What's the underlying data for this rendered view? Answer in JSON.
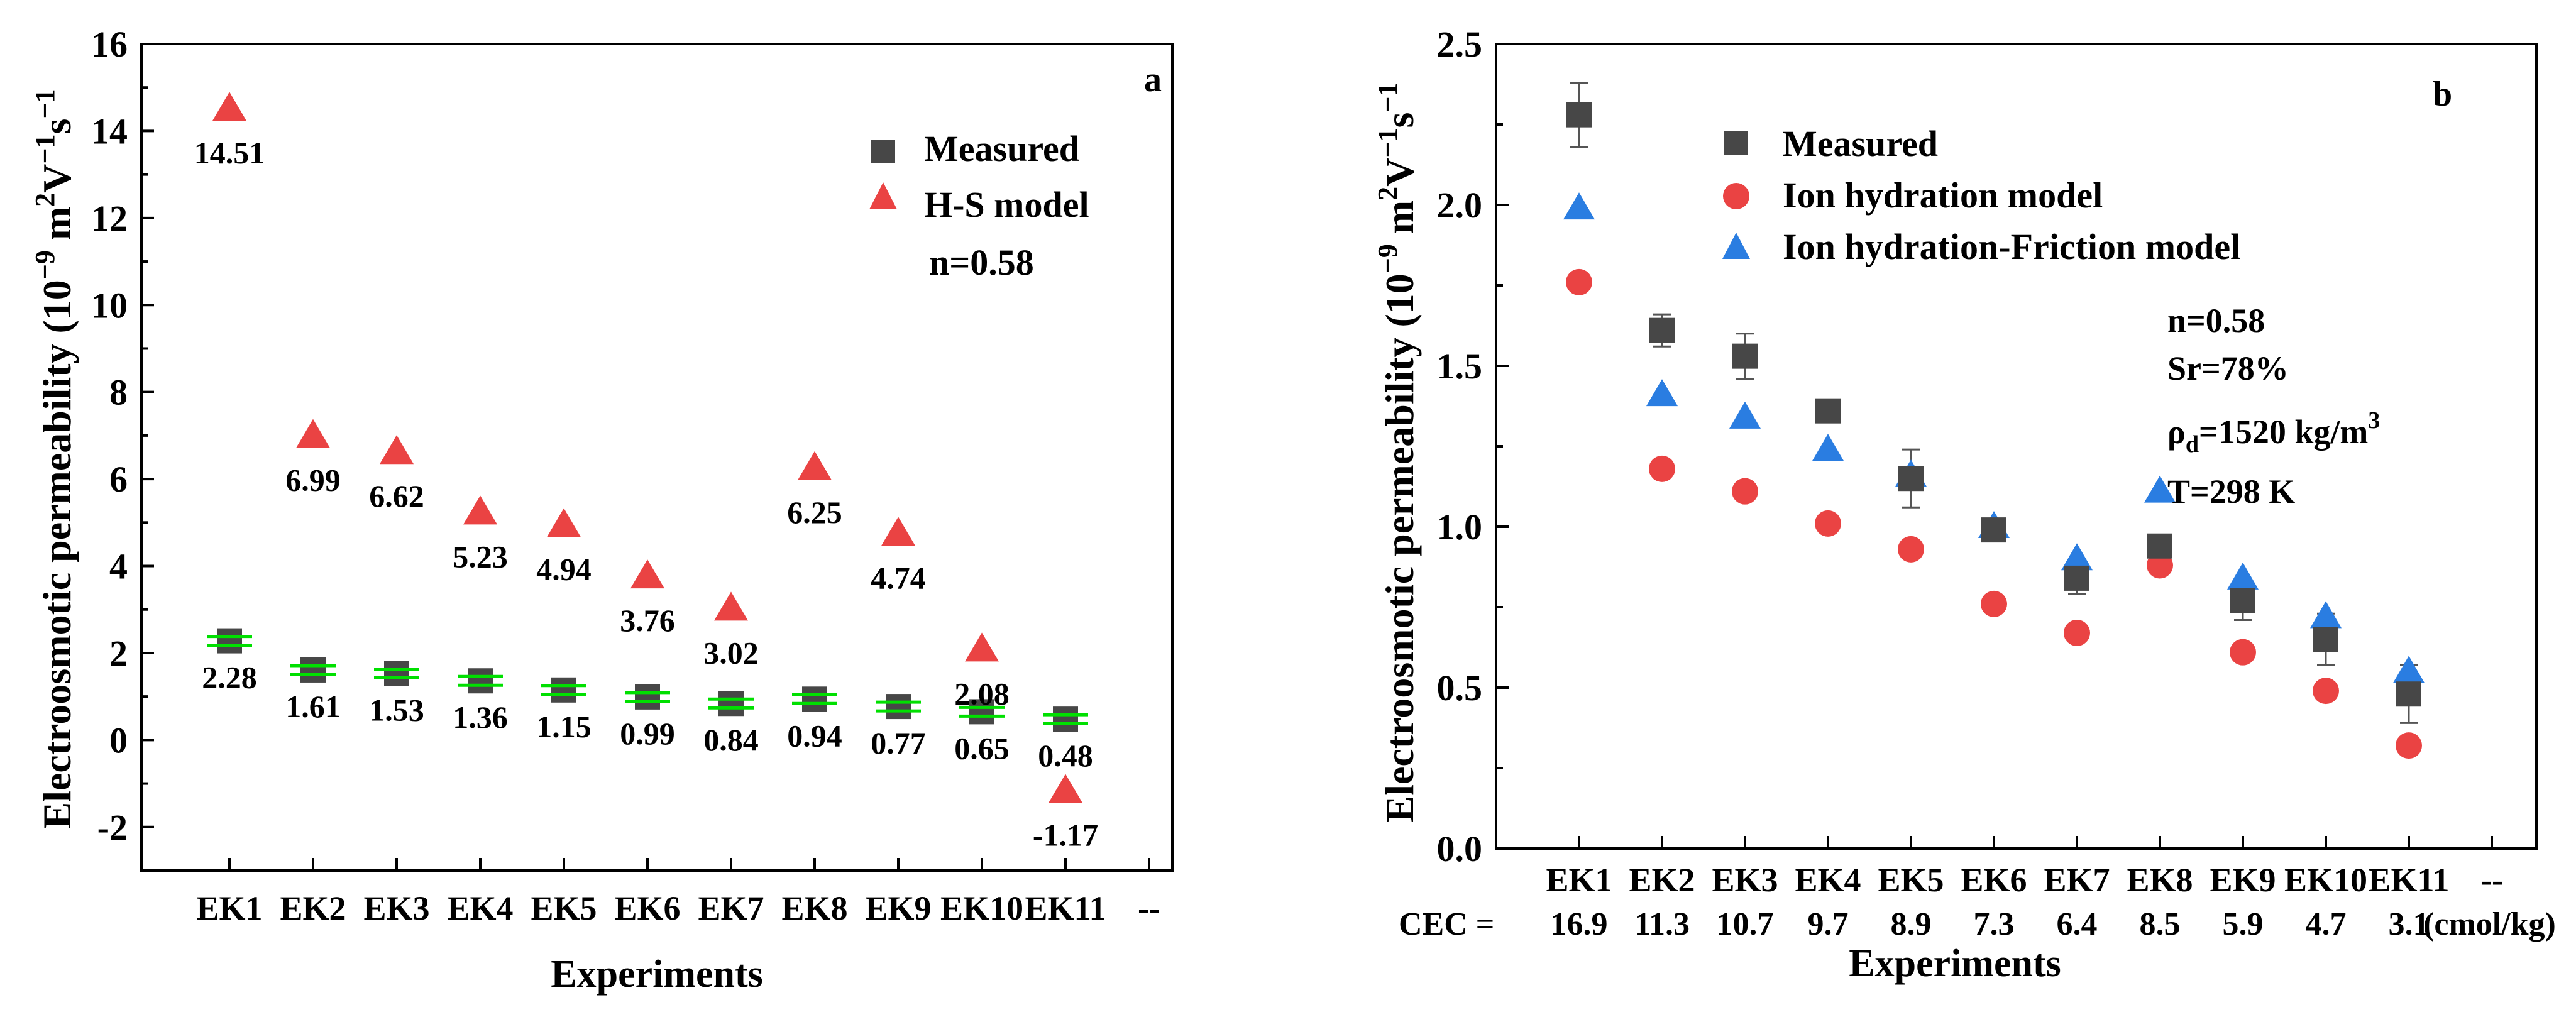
{
  "chart_data": [
    {
      "type": "scatter",
      "panel_label": "a",
      "xlabel": "Experiments",
      "ylabel_main": "Electroosmotic permeability (10",
      "ylabel_sup1": "−9",
      "ylabel_mid1": " m",
      "ylabel_sup2": "2",
      "ylabel_mid2": "V",
      "ylabel_sup3": "−1",
      "ylabel_mid3": "s",
      "ylabel_sup4": "−1",
      "categories": [
        "EK1",
        "EK2",
        "EK3",
        "EK4",
        "EK5",
        "EK6",
        "EK7",
        "EK8",
        "EK9",
        "EK10",
        "EK11",
        "--"
      ],
      "ylim": [
        -3,
        16
      ],
      "yticks": [
        -2,
        0,
        2,
        4,
        6,
        8,
        10,
        12,
        14,
        16
      ],
      "ytick_labels": [
        "-2",
        "0",
        "2",
        "4",
        "6",
        "8",
        "10",
        "12",
        "14",
        "16"
      ],
      "series": [
        {
          "name": "Measured",
          "marker": "square",
          "color": "#474747",
          "values": [
            2.28,
            1.61,
            1.53,
            1.36,
            1.15,
            0.99,
            0.84,
            0.94,
            0.77,
            0.65,
            0.48
          ],
          "labels": [
            "2.28",
            "1.61",
            "1.53",
            "1.36",
            "1.15",
            "0.99",
            "0.84",
            "0.94",
            "0.77",
            "0.65",
            "0.48"
          ]
        },
        {
          "name": "H-S model",
          "marker": "triangle",
          "color": "#ea4343",
          "values": [
            14.51,
            6.99,
            6.62,
            5.23,
            4.94,
            3.76,
            3.02,
            6.25,
            4.74,
            2.08,
            -1.17
          ],
          "labels": [
            "14.51",
            "6.99",
            "6.62",
            "5.23",
            "4.94",
            "3.76",
            "3.02",
            "6.25",
            "4.74",
            "2.08",
            "-1.17"
          ]
        }
      ],
      "errorbar_color": "#00e000",
      "annotation": "n=0.58",
      "legend_position": "top-right"
    },
    {
      "type": "scatter",
      "panel_label": "b",
      "xlabel": "Experiments",
      "ylabel_main": "Electroosmotic permeability (10",
      "ylabel_sup1": "−9",
      "ylabel_mid1": " m",
      "ylabel_sup2": "2",
      "ylabel_mid2": "V",
      "ylabel_sup3": "−1",
      "ylabel_mid3": "s",
      "ylabel_sup4": "−1",
      "categories": [
        "EK1",
        "EK2",
        "EK3",
        "EK4",
        "EK5",
        "EK6",
        "EK7",
        "EK8",
        "EK9",
        "EK10",
        "EK11",
        "--"
      ],
      "cec_prefix": "CEC = ",
      "cec_values": [
        "16.9",
        "11.3",
        "10.7",
        "9.7",
        "8.9",
        "7.3",
        "6.4",
        "8.5",
        "5.9",
        "4.7",
        "3.1"
      ],
      "cec_unit": "(cmol/kg)",
      "ylim": [
        0,
        2.5
      ],
      "yticks": [
        0,
        0.5,
        1.0,
        1.5,
        2.0,
        2.5
      ],
      "ytick_labels": [
        "0.0",
        "0.5",
        "1.0",
        "1.5",
        "2.0",
        "2.5"
      ],
      "series": [
        {
          "name": "Measured",
          "marker": "square",
          "color": "#474747",
          "values": [
            2.28,
            1.61,
            1.53,
            1.36,
            1.15,
            0.99,
            0.84,
            0.94,
            0.77,
            0.65,
            0.48
          ],
          "errors": [
            0.1,
            0.05,
            0.07,
            0.03,
            0.09,
            0.03,
            0.05,
            0.03,
            0.06,
            0.08,
            0.09
          ]
        },
        {
          "name": "Ion hydration model",
          "marker": "circle",
          "color": "#ea4343",
          "values": [
            1.76,
            1.18,
            1.11,
            1.01,
            0.93,
            0.76,
            0.67,
            0.88,
            0.61,
            0.49,
            0.32
          ]
        },
        {
          "name": "Ion hydration-Friction model",
          "marker": "triangle",
          "color": "#2a7de1",
          "values": [
            1.99,
            1.41,
            1.34,
            1.24,
            1.16,
            1.0,
            0.9,
            1.11,
            0.84,
            0.72,
            0.55
          ]
        }
      ],
      "annotations": [
        {
          "main": "n=0.58"
        },
        {
          "main": "Sr=78%"
        },
        {
          "main": "ρ",
          "sub": "d",
          "rest": "=1520 kg/m",
          "sup": "3"
        },
        {
          "main": "T=298 K"
        }
      ],
      "legend_position": "top-left"
    }
  ]
}
